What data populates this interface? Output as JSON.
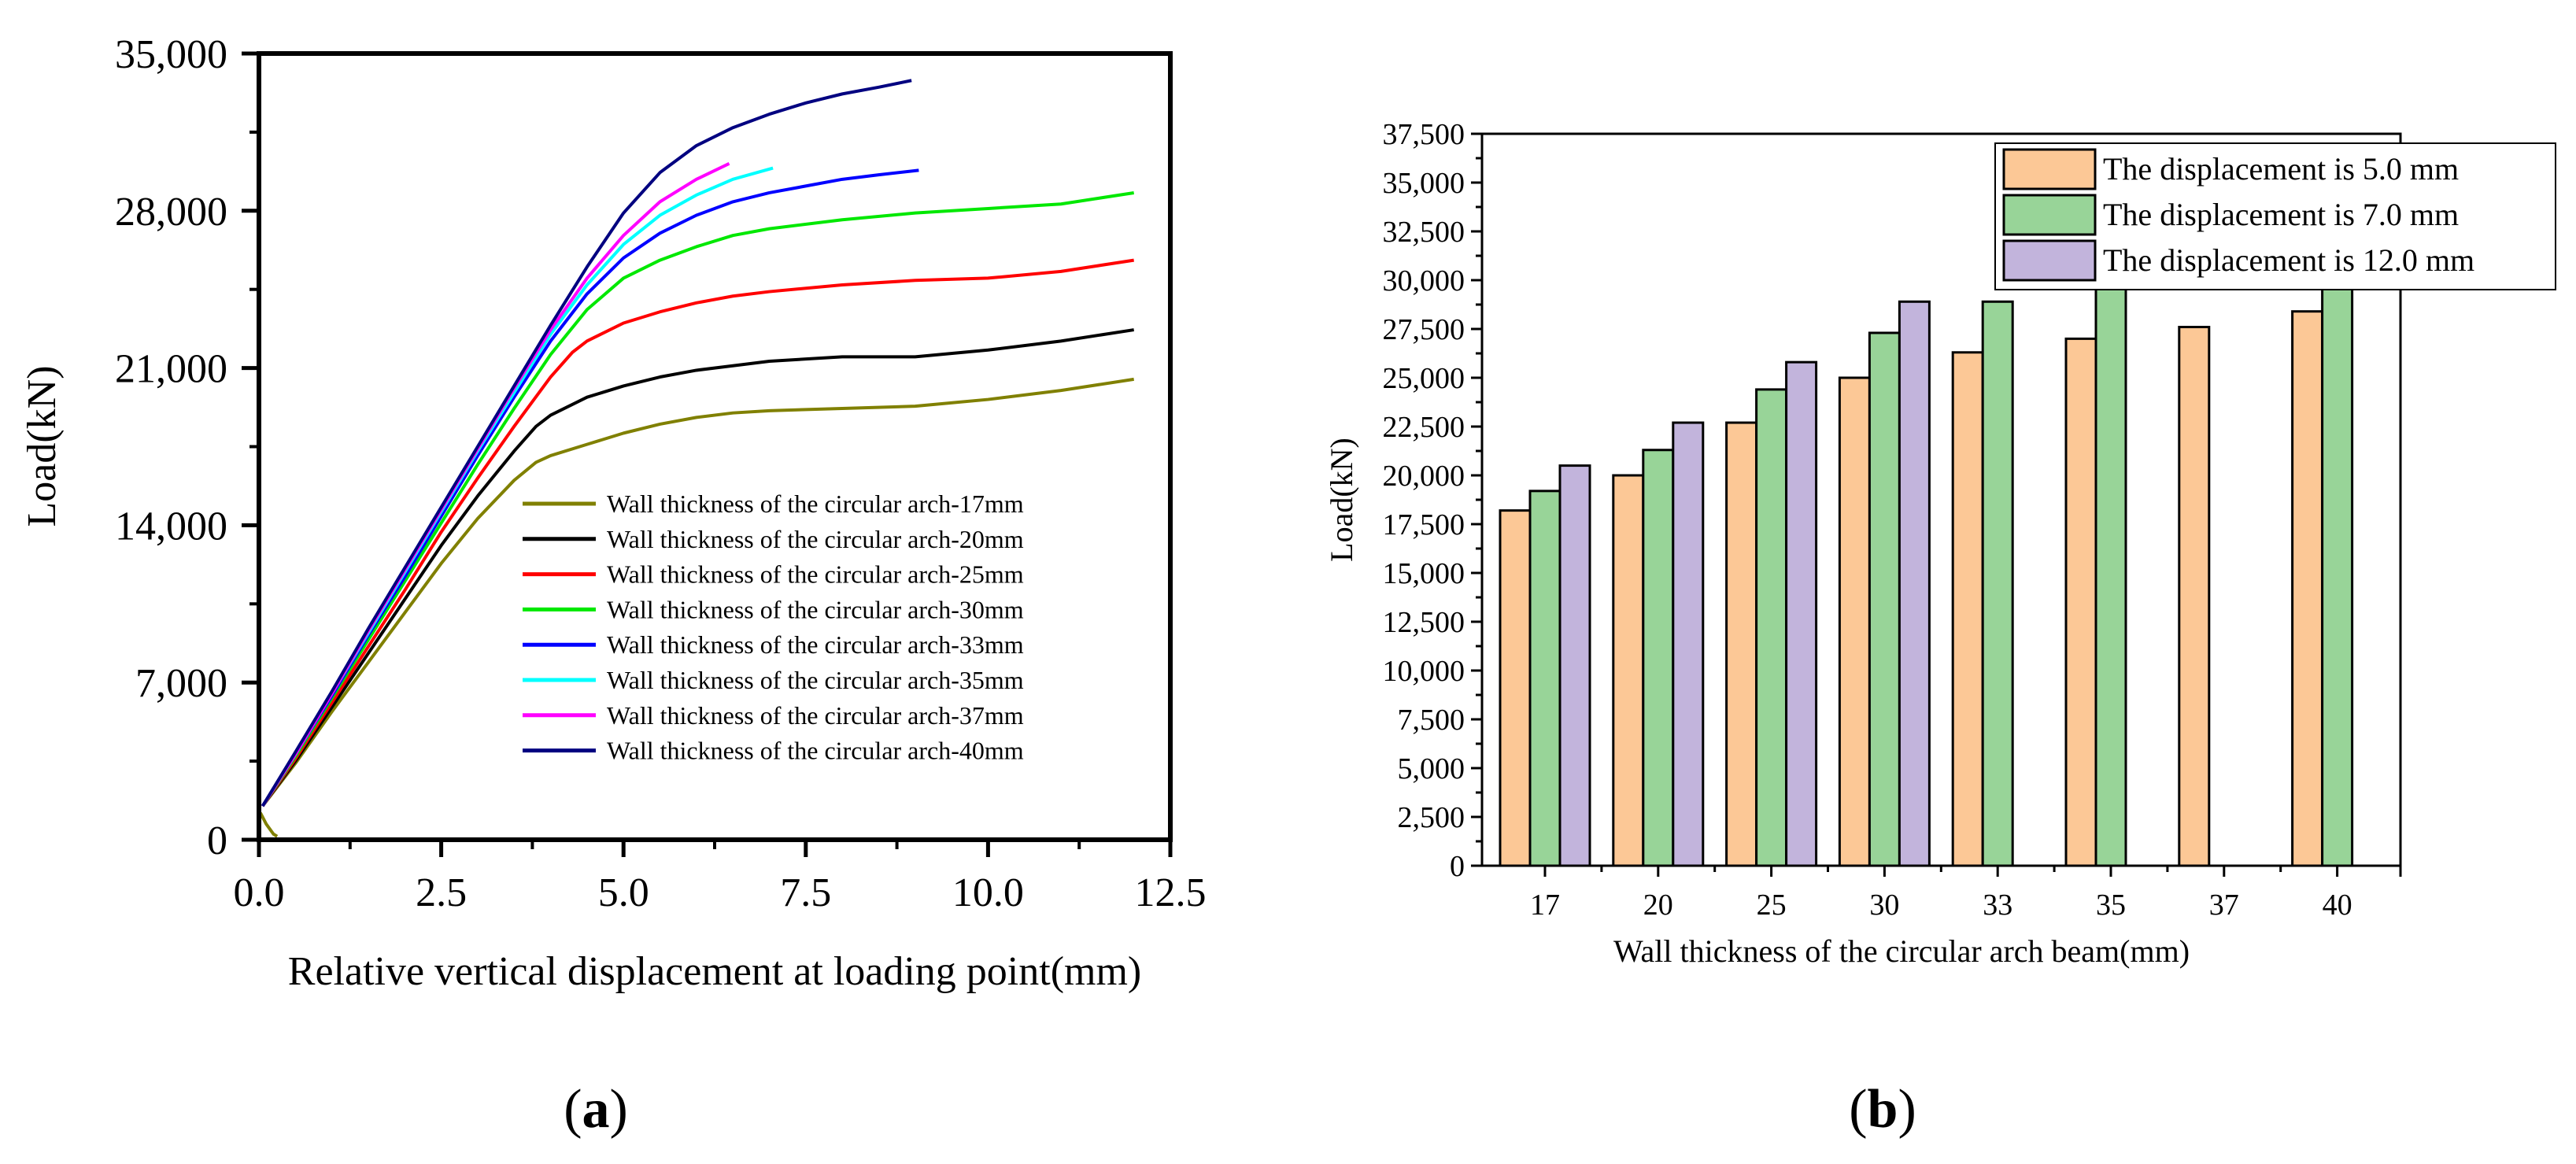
{
  "chart_data": [
    {
      "id": "a",
      "type": "line",
      "panel_label": "(a)",
      "panel_letter": "a",
      "xlabel": "Relative vertical displacement at loading point(mm)",
      "ylabel": "Load(kN)",
      "xlim": [
        0,
        12.5
      ],
      "ylim": [
        0,
        35000
      ],
      "xticks": [
        0,
        2.5,
        5,
        7.5,
        10,
        12.5
      ],
      "xtick_labels": [
        "0.0",
        "2.5",
        "5.0",
        "7.5",
        "10.0",
        "12.5"
      ],
      "yticks": [
        0,
        7000,
        14000,
        21000,
        28000,
        35000
      ],
      "ytick_labels": [
        "0",
        "7,000",
        "14,000",
        "21,000",
        "28,000",
        "35,000"
      ],
      "legend_position": "bottom-right",
      "series": [
        {
          "name": "Wall thickness of the circular arch-17mm",
          "color": "#808000",
          "x": [
            0.05,
            0.5,
            1,
            1.5,
            2,
            2.5,
            3,
            3.5,
            3.8,
            4,
            4.5,
            5,
            5.5,
            6,
            6.5,
            7,
            8,
            9,
            10,
            11,
            12
          ],
          "y": [
            1500,
            3400,
            5700,
            7900,
            10100,
            12300,
            14300,
            16000,
            16800,
            17100,
            17600,
            18100,
            18500,
            18800,
            19000,
            19100,
            19200,
            19300,
            19600,
            20000,
            20500
          ]
        },
        {
          "name": "Wall thickness of the circular arch-20mm",
          "color": "#000000",
          "x": [
            0.05,
            0.5,
            1,
            1.5,
            2,
            2.5,
            3,
            3.5,
            3.8,
            4,
            4.5,
            5,
            5.5,
            6,
            6.5,
            7,
            8,
            9,
            10,
            11,
            12
          ],
          "y": [
            1500,
            3500,
            5900,
            8300,
            10700,
            13100,
            15300,
            17300,
            18400,
            18900,
            19700,
            20200,
            20600,
            20900,
            21100,
            21300,
            21500,
            21500,
            21800,
            22200,
            22700
          ]
        },
        {
          "name": "Wall thickness of the circular arch-25mm",
          "color": "#ff0000",
          "x": [
            0.05,
            0.5,
            1,
            1.5,
            2,
            2.5,
            3,
            3.5,
            4,
            4.3,
            4.5,
            5,
            5.5,
            6,
            6.5,
            7,
            8,
            9,
            10,
            11,
            12
          ],
          "y": [
            1500,
            3600,
            6100,
            8600,
            11100,
            13700,
            16100,
            18400,
            20600,
            21700,
            22200,
            23000,
            23500,
            23900,
            24200,
            24400,
            24700,
            24900,
            25000,
            25300,
            25800
          ]
        },
        {
          "name": "Wall thickness of the circular arch-30mm",
          "color": "#00e800",
          "x": [
            0.05,
            0.5,
            1,
            1.5,
            2,
            2.5,
            3,
            3.5,
            4,
            4.5,
            5,
            5.5,
            6,
            6.5,
            7,
            8,
            9,
            10,
            11,
            12
          ],
          "y": [
            1500,
            3700,
            6300,
            8900,
            11500,
            14100,
            16700,
            19200,
            21600,
            23600,
            25000,
            25800,
            26400,
            26900,
            27200,
            27600,
            27900,
            28100,
            28300,
            28800
          ]
        },
        {
          "name": "Wall thickness of the circular arch-33mm",
          "color": "#0000ff",
          "x": [
            0.05,
            0.5,
            1,
            1.5,
            2,
            2.5,
            3,
            3.5,
            4,
            4.5,
            5,
            5.5,
            6,
            6.5,
            7,
            7.5,
            8,
            8.5,
            9.05
          ],
          "y": [
            1500,
            3800,
            6400,
            9100,
            11700,
            14400,
            17100,
            19700,
            22200,
            24300,
            25900,
            27000,
            27800,
            28400,
            28800,
            29100,
            29400,
            29600,
            29800
          ]
        },
        {
          "name": "Wall thickness of the circular arch-35mm",
          "color": "#00ffff",
          "x": [
            0.05,
            0.5,
            1,
            1.5,
            2,
            2.5,
            3,
            3.5,
            4,
            4.5,
            5,
            5.5,
            6,
            6.5,
            7.05
          ],
          "y": [
            1500,
            3800,
            6500,
            9200,
            11900,
            14600,
            17300,
            19900,
            22500,
            24700,
            26500,
            27800,
            28700,
            29400,
            29900
          ]
        },
        {
          "name": "Wall thickness of the circular arch-37mm",
          "color": "#ff00ff",
          "x": [
            0.05,
            0.5,
            1,
            1.5,
            2,
            2.5,
            3,
            3.5,
            4,
            4.5,
            5,
            5.5,
            6,
            6.45
          ],
          "y": [
            1500,
            3800,
            6500,
            9300,
            12000,
            14700,
            17400,
            20100,
            22700,
            25000,
            26900,
            28400,
            29400,
            30100
          ]
        },
        {
          "name": "Wall thickness of the circular arch-40mm",
          "color": "#000080",
          "x": [
            0.05,
            0.5,
            1,
            1.5,
            2,
            2.5,
            3,
            3.5,
            4,
            4.5,
            5,
            5.5,
            6,
            6.5,
            7,
            7.5,
            8,
            8.5,
            8.95
          ],
          "y": [
            1500,
            3900,
            6600,
            9400,
            12100,
            14800,
            17500,
            20200,
            22900,
            25500,
            27900,
            29700,
            30900,
            31700,
            32300,
            32800,
            33200,
            33500,
            33800
          ]
        }
      ],
      "initial_hook": {
        "color": "#808000",
        "x": [
          0.02,
          0.1,
          0.2,
          0.25
        ],
        "y": [
          1200,
          700,
          250,
          150
        ]
      }
    },
    {
      "id": "b",
      "type": "bar",
      "panel_label": "(b)",
      "panel_letter": "b",
      "xlabel": "Wall thickness of the circular arch beam(mm)",
      "ylabel": "Load(kN)",
      "ylim": [
        0,
        37500
      ],
      "yticks": [
        0,
        2500,
        5000,
        7500,
        10000,
        12500,
        15000,
        17500,
        20000,
        22500,
        25000,
        27500,
        30000,
        32500,
        35000,
        37500
      ],
      "ytick_labels": [
        "0",
        "2,500",
        "5,000",
        "7,500",
        "10,000",
        "12,500",
        "15,000",
        "17,500",
        "20,000",
        "22,500",
        "25,000",
        "27,500",
        "30,000",
        "32,500",
        "35,000",
        "37,500"
      ],
      "categories": [
        "17",
        "20",
        "25",
        "30",
        "33",
        "35",
        "37",
        "40"
      ],
      "legend_position": "top-right",
      "series": [
        {
          "name": "The displacement is 5.0 mm",
          "color": "#fcc896",
          "values": [
            18200,
            20000,
            22700,
            25000,
            26300,
            27000,
            27600,
            28400
          ]
        },
        {
          "name": "The displacement is 7.0 mm",
          "color": "#98d498",
          "values": [
            19200,
            21300,
            24400,
            27300,
            28900,
            29800,
            null,
            29800
          ]
        },
        {
          "name": "The displacement is 12.0 mm",
          "color": "#c2b4dc",
          "values": [
            20500,
            22700,
            25800,
            28900,
            null,
            null,
            null,
            null
          ]
        }
      ]
    }
  ]
}
